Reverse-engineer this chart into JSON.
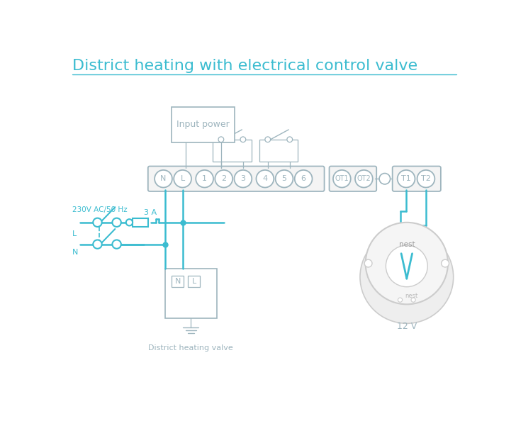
{
  "title": "District heating with electrical control valve",
  "title_color": "#3bbcd0",
  "title_fontsize": 16,
  "bg_color": "#ffffff",
  "line_color": "#3bbcd0",
  "gray": "#9eb5be",
  "dark_gray": "#8a9ea6",
  "label_color": "#8a9ea6",
  "terminal_labels": [
    "N",
    "L",
    "1",
    "2",
    "3",
    "4",
    "5",
    "6"
  ],
  "ot_labels": [
    "OT1",
    "OT2"
  ],
  "right_labels": [
    "T1",
    "T2"
  ]
}
